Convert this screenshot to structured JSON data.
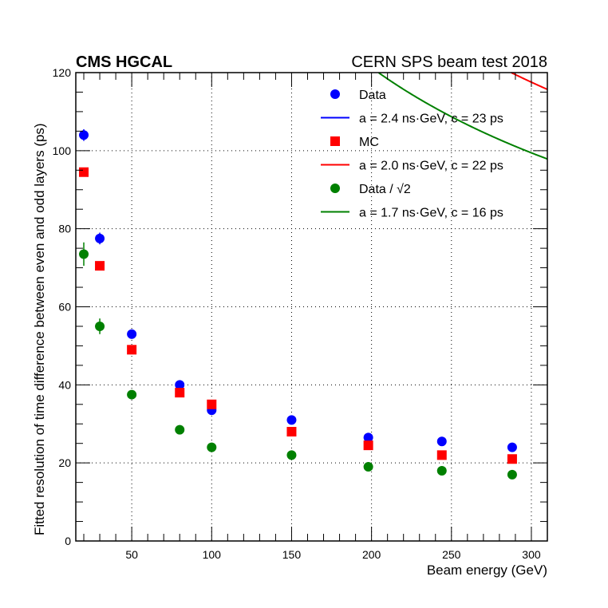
{
  "header": {
    "left": "CMS HGCAL",
    "right": "CERN SPS beam test 2018"
  },
  "chart_data": {
    "type": "scatter",
    "xlabel": "Beam energy (GeV)",
    "ylabel": "Fitted resolution of time difference between even and odd layers (ps)",
    "xlim": [
      15,
      310
    ],
    "ylim": [
      0,
      120
    ],
    "xticks": [
      50,
      100,
      150,
      200,
      250,
      300
    ],
    "yticks": [
      0,
      20,
      40,
      60,
      80,
      100,
      120
    ],
    "grid": true,
    "legend_position": "top-right",
    "series": [
      {
        "name": "Data",
        "marker": "circle",
        "color": "#0000ff",
        "x": [
          20,
          30,
          50,
          80,
          100,
          150,
          198,
          244,
          288
        ],
        "y": [
          104,
          77.5,
          53,
          40,
          33.5,
          31,
          26.5,
          25.5,
          24
        ],
        "err": [
          1.5,
          1.5,
          1.2,
          1,
          1,
          1,
          0.8,
          0.8,
          0.8
        ]
      },
      {
        "name": "MC",
        "marker": "square",
        "color": "#ff0000",
        "x": [
          20,
          30,
          50,
          80,
          100,
          150,
          198,
          244,
          288
        ],
        "y": [
          94.5,
          70.5,
          49,
          38,
          35,
          28,
          24.5,
          22,
          21
        ],
        "err": [
          0,
          0,
          0,
          0,
          0,
          0,
          0,
          0,
          0
        ]
      },
      {
        "name": "Data / √2",
        "marker": "circle",
        "color": "#008000",
        "x": [
          20,
          30,
          50,
          80,
          100,
          150,
          198,
          244,
          288
        ],
        "y": [
          73.5,
          55,
          37.5,
          28.5,
          24,
          22,
          19,
          18,
          17
        ],
        "err": [
          3,
          2,
          1,
          0.8,
          0.8,
          0.7,
          0.6,
          0.6,
          0.6
        ]
      }
    ],
    "fits": [
      {
        "name": "a = 2.4 ns·GeV, c = 23 ps",
        "a_ps_gev": 2400,
        "c_ps": 23,
        "color": "#0000ff"
      },
      {
        "name": "a = 2.0 ns·GeV, c = 22 ps",
        "a_ps_gev": 2000,
        "c_ps": 22,
        "color": "#ff0000"
      },
      {
        "name": "a = 1.7 ns·GeV, c = 16 ps",
        "a_ps_gev": 1700,
        "c_ps": 16,
        "color": "#008000"
      }
    ],
    "legend": [
      {
        "label": "Data",
        "kind": "marker-circle",
        "color": "#0000ff"
      },
      {
        "label": "a = 2.4 ns·GeV, c = 23 ps",
        "kind": "line",
        "color": "#0000ff"
      },
      {
        "label": "MC",
        "kind": "marker-square",
        "color": "#ff0000"
      },
      {
        "label": "a = 2.0 ns·GeV, c = 22 ps",
        "kind": "line",
        "color": "#ff0000"
      },
      {
        "label": "Data / √2",
        "kind": "marker-circle",
        "color": "#008000"
      },
      {
        "label": "a = 1.7 ns·GeV, c = 16 ps",
        "kind": "line",
        "color": "#008000"
      }
    ]
  }
}
